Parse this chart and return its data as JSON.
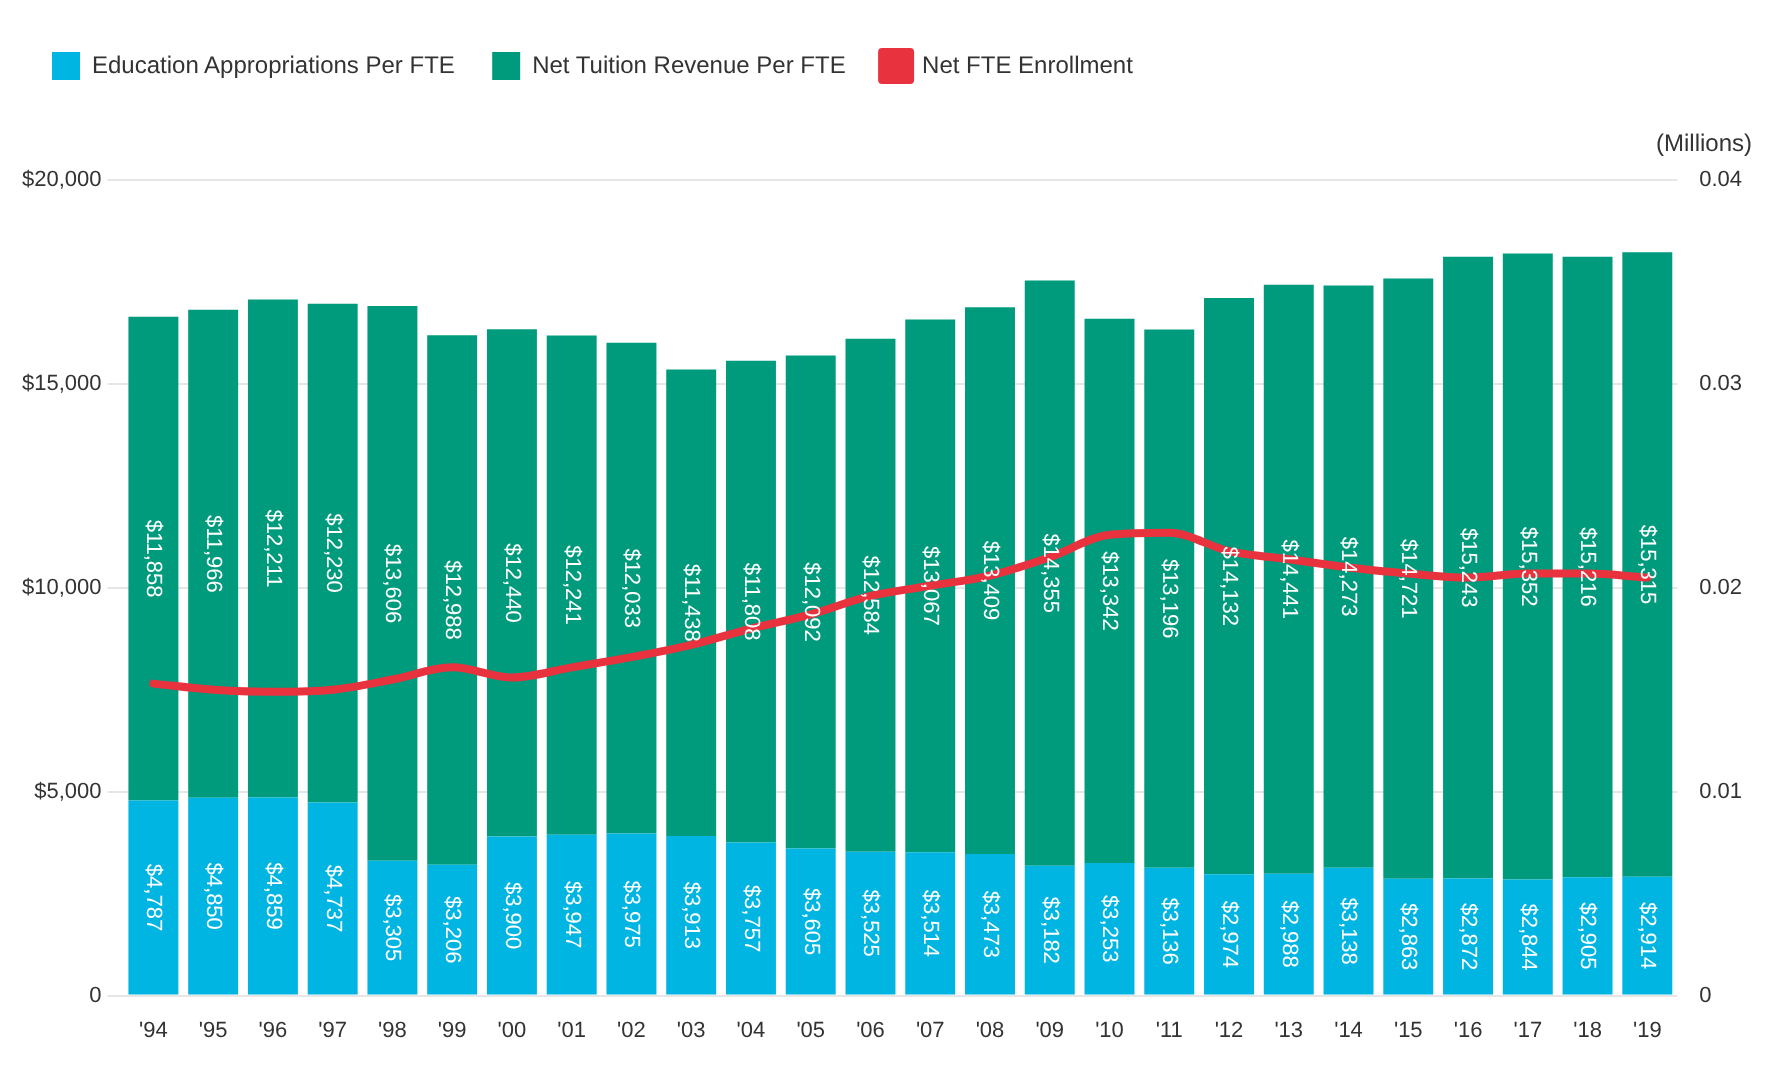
{
  "chart_data": {
    "type": "bar",
    "stacked": true,
    "categories": [
      "'94",
      "'95",
      "'96",
      "'97",
      "'98",
      "'99",
      "'00",
      "'01",
      "'02",
      "'03",
      "'04",
      "'05",
      "'06",
      "'07",
      "'08",
      "'09",
      "'10",
      "'11",
      "'12",
      "'13",
      "'14",
      "'15",
      "'16",
      "'17",
      "'18",
      "'19"
    ],
    "series": [
      {
        "name": "Education Appropriations Per FTE",
        "color": "#00b5e2",
        "values": [
          4787,
          4850,
          4859,
          4737,
          3305,
          3206,
          3900,
          3947,
          3975,
          3913,
          3757,
          3605,
          3525,
          3514,
          3473,
          3182,
          3253,
          3136,
          2974,
          2988,
          3138,
          2863,
          2872,
          2844,
          2905,
          2914
        ],
        "value_labels": [
          "$4,787",
          "$4,850",
          "$4,859",
          "$4,737",
          "$3,305",
          "$3,206",
          "$3,900",
          "$3,947",
          "$3,975",
          "$3,913",
          "$3,757",
          "$3,605",
          "$3,525",
          "$3,514",
          "$3,473",
          "$3,182",
          "$3,253",
          "$3,136",
          "$2,974",
          "$2,988",
          "$3,138",
          "$2,863",
          "$2,872",
          "$2,844",
          "$2,905",
          "$2,914"
        ]
      },
      {
        "name": "Net Tuition Revenue Per FTE",
        "color": "#009b7d",
        "values": [
          11858,
          11966,
          12211,
          12230,
          13606,
          12988,
          12440,
          12241,
          12033,
          11438,
          11808,
          12092,
          12584,
          13067,
          13409,
          14355,
          13342,
          13196,
          14132,
          14441,
          14273,
          14721,
          15243,
          15352,
          15216,
          15315
        ],
        "value_labels": [
          "$11,858",
          "$11,966",
          "$12,211",
          "$12,230",
          "$13,606",
          "$12,988",
          "$12,440",
          "$12,241",
          "$12,033",
          "$11,438",
          "$11,808",
          "$12,092",
          "$12,584",
          "$13,067",
          "$13,409",
          "$14,355",
          "$13,342",
          "$13,196",
          "$14,132",
          "$14,441",
          "$14,273",
          "$14,721",
          "$15,243",
          "$15,352",
          "$15,216",
          "$15,315"
        ]
      },
      {
        "name": "Net FTE Enrollment",
        "type": "line",
        "axis": "y2",
        "color": "#e8333f",
        "marker": "none",
        "values": [
          0.0153,
          0.015,
          0.0149,
          0.015,
          0.0155,
          0.0161,
          0.0156,
          0.0161,
          0.0166,
          0.0172,
          0.018,
          0.0187,
          0.0196,
          0.0201,
          0.0206,
          0.0215,
          0.0226,
          0.0227,
          0.0218,
          0.0214,
          0.021,
          0.0207,
          0.0205,
          0.0207,
          0.0207,
          0.0205
        ]
      }
    ],
    "ylim": [
      0,
      20000
    ],
    "yticks": [
      {
        "value": 0,
        "label": "0"
      },
      {
        "value": 5000,
        "label": "$5,000"
      },
      {
        "value": 10000,
        "label": "$10,000"
      },
      {
        "value": 15000,
        "label": "$15,000"
      },
      {
        "value": 20000,
        "label": "$20,000"
      }
    ],
    "y2lim": [
      0,
      0.04
    ],
    "y2ticks": [
      0,
      0.01,
      0.02,
      0.03,
      0.04
    ],
    "y2label": "(Millions)",
    "grid": "y",
    "legend": "top left"
  }
}
